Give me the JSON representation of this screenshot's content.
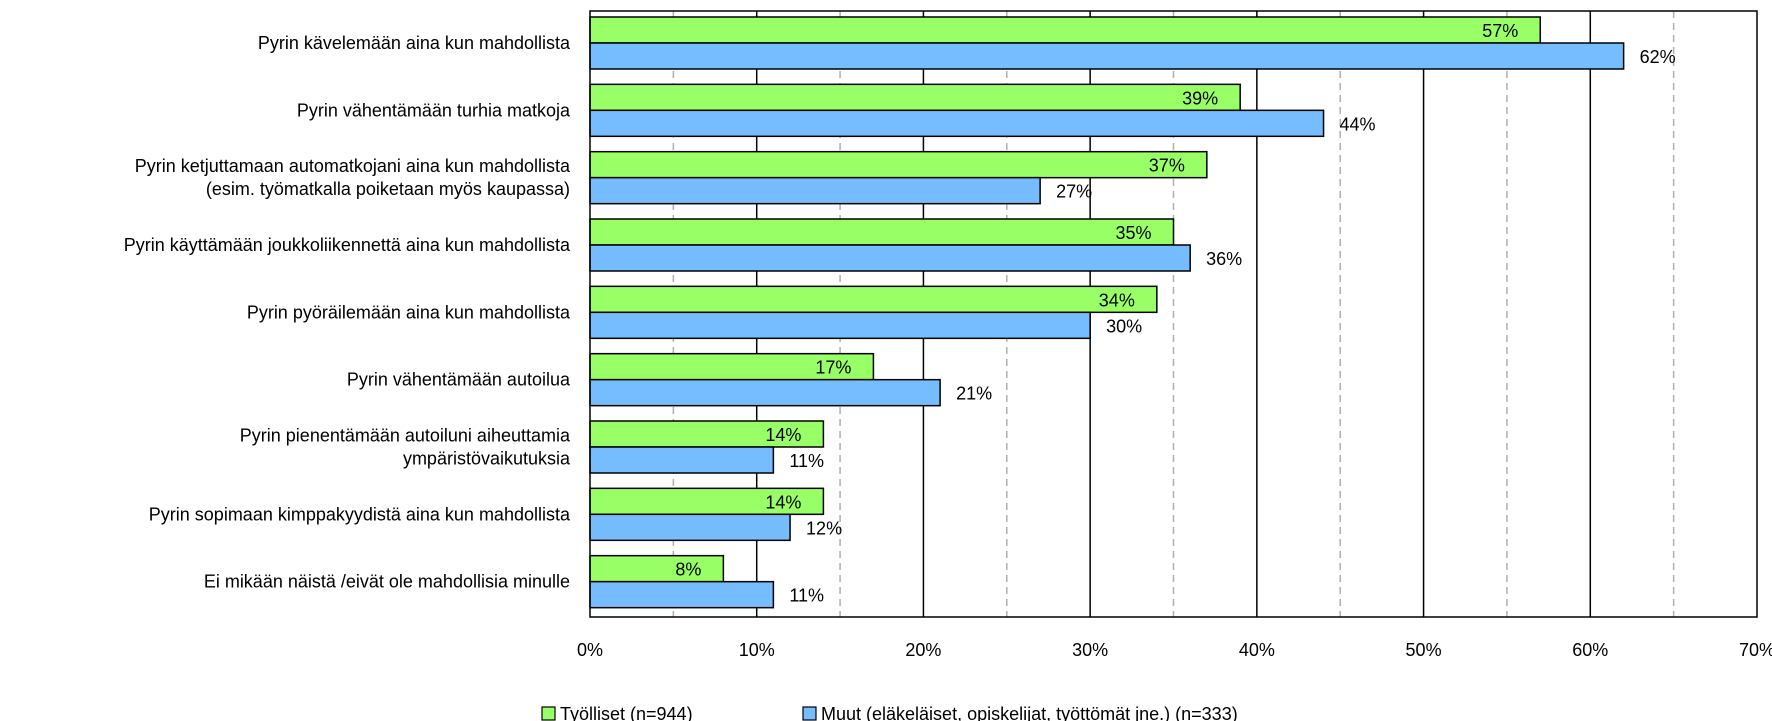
{
  "chart_data": {
    "type": "bar",
    "orientation": "horizontal",
    "title": "",
    "xlabel": "",
    "ylabel": "",
    "xlim": [
      0,
      70
    ],
    "x_ticks": [
      "0%",
      "10%",
      "20%",
      "30%",
      "40%",
      "50%",
      "60%",
      "70%"
    ],
    "grid": "vertical major solid, minor dashed",
    "legend_position": "bottom",
    "categories": [
      [
        "Pyrin kävelemään aina kun mahdollista"
      ],
      [
        "Pyrin vähentämään turhia matkoja"
      ],
      [
        "Pyrin ketjuttamaan automatkojani aina kun mahdollista",
        "(esim. työmatkalla poiketaan myös kaupassa)"
      ],
      [
        "Pyrin käyttämään joukkoliikennettä aina kun mahdollista"
      ],
      [
        "Pyrin pyöräilemään aina kun mahdollista"
      ],
      [
        "Pyrin vähentämään autoilua"
      ],
      [
        "Pyrin pienentämään autoiluni aiheuttamia",
        "ympäristövaikutuksia"
      ],
      [
        "Pyrin sopimaan kimppakyydistä aina kun mahdollista"
      ],
      [
        "Ei mikään näistä /eivät ole mahdollisia minulle"
      ]
    ],
    "series": [
      {
        "name": "Työlliset (n=944)",
        "color": "#99ff66",
        "values": [
          57,
          39,
          37,
          35,
          34,
          17,
          14,
          14,
          8
        ],
        "labels": [
          "57%",
          "39%",
          "37%",
          "35%",
          "34%",
          "17%",
          "14%",
          "14%",
          "8%"
        ]
      },
      {
        "name": "Muut (eläkeläiset, opiskelijat, työttömät jne.) (n=333)",
        "color": "#75bdff",
        "values": [
          62,
          44,
          27,
          36,
          30,
          21,
          11,
          12,
          11
        ],
        "labels": [
          "62%",
          "44%",
          "27%",
          "36%",
          "30%",
          "21%",
          "11%",
          "12%",
          "11%"
        ]
      }
    ]
  }
}
